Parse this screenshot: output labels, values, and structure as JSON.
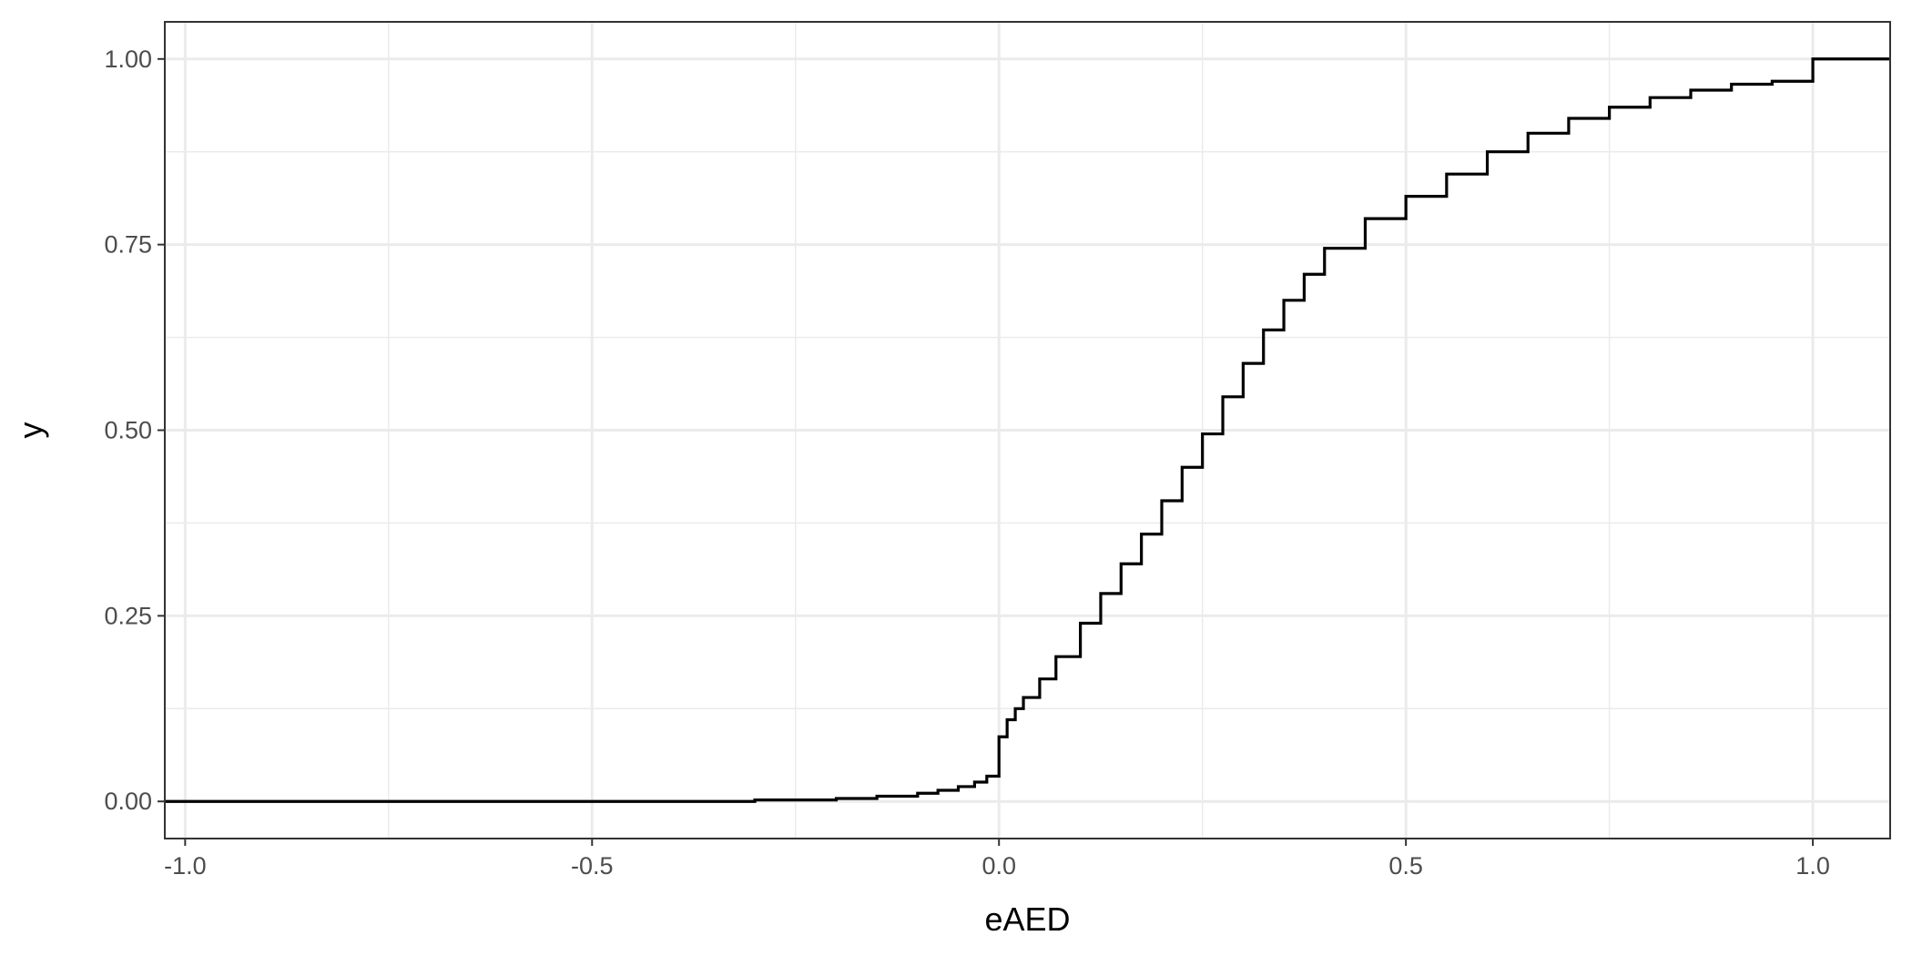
{
  "chart_data": {
    "type": "line",
    "step": true,
    "xlabel": "eAED",
    "ylabel": "y",
    "xlim": [
      -1.025,
      1.095
    ],
    "ylim": [
      -0.05,
      1.05
    ],
    "x_ticks": [
      -1.0,
      -0.5,
      0.0,
      0.5,
      1.0
    ],
    "x_tick_labels": [
      "-1.0",
      "-0.5",
      "0.0",
      "0.5",
      "1.0"
    ],
    "y_ticks": [
      0.0,
      0.25,
      0.5,
      0.75,
      1.0
    ],
    "y_tick_labels": [
      "0.00",
      "0.25",
      "0.50",
      "0.75",
      "1.00"
    ],
    "grid": true,
    "series": [
      {
        "color": "#000000",
        "x": [
          -1.025,
          -0.5,
          -0.3,
          -0.2,
          -0.15,
          -0.1,
          -0.075,
          -0.05,
          -0.03,
          -0.015,
          0.0,
          0.0,
          0.01,
          0.02,
          0.03,
          0.05,
          0.07,
          0.1,
          0.125,
          0.15,
          0.175,
          0.2,
          0.225,
          0.25,
          0.275,
          0.3,
          0.325,
          0.35,
          0.375,
          0.4,
          0.45,
          0.5,
          0.55,
          0.6,
          0.65,
          0.7,
          0.75,
          0.8,
          0.85,
          0.9,
          0.95,
          1.0,
          1.0,
          1.095
        ],
        "y": [
          0.0,
          0.0,
          0.002,
          0.004,
          0.007,
          0.011,
          0.015,
          0.02,
          0.026,
          0.034,
          0.04,
          0.087,
          0.11,
          0.125,
          0.14,
          0.165,
          0.195,
          0.24,
          0.28,
          0.32,
          0.36,
          0.405,
          0.45,
          0.495,
          0.545,
          0.59,
          0.635,
          0.675,
          0.71,
          0.745,
          0.785,
          0.815,
          0.845,
          0.875,
          0.9,
          0.92,
          0.935,
          0.948,
          0.958,
          0.966,
          0.97,
          0.975,
          1.0,
          1.0
        ]
      }
    ]
  }
}
